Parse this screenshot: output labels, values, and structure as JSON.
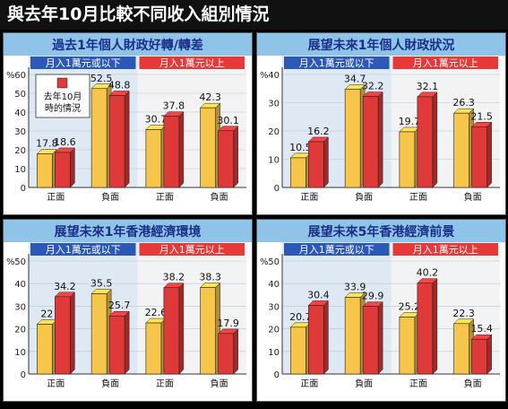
{
  "title": "與去年10月比較不同收入組別情況",
  "colors": {
    "yellow": "#f6c64a",
    "red": "#e0393a",
    "header_bg": "#8fc3e8",
    "header_text": "#1a2f8a",
    "plot_bg_left": "#dfe9f4",
    "plot_bg_right": "#f3f3f3",
    "legend_blue": "#2c59b8",
    "legend_red": "#e8393a"
  },
  "legend_note": {
    "line1": "去年10月",
    "line2": "時的情況"
  },
  "chart_data": [
    {
      "type": "bar",
      "title": "過去1年個人財政好轉/轉差",
      "ylabel": "%",
      "ylim": [
        0,
        60
      ],
      "yticks": [
        0,
        10,
        20,
        30,
        40,
        50,
        60
      ],
      "groups": [
        "月入1萬元或以下",
        "月入1萬元以上"
      ],
      "categories": [
        "正面",
        "負面",
        "正面",
        "負面"
      ],
      "series": [
        {
          "values": [
            17.8,
            52.5,
            30.7,
            42.3
          ]
        },
        {
          "values": [
            18.6,
            48.8,
            37.8,
            30.1
          ]
        }
      ],
      "has_note": true
    },
    {
      "type": "bar",
      "title": "展望未來1年個人財政狀況",
      "ylabel": "%",
      "ylim": [
        0,
        40
      ],
      "yticks": [
        0,
        10,
        20,
        30,
        40
      ],
      "groups": [
        "月入1萬元或以下",
        "月入1萬元以上"
      ],
      "categories": [
        "正面",
        "負面",
        "正面",
        "負面"
      ],
      "series": [
        {
          "values": [
            10.5,
            34.7,
            19.7,
            26.3
          ]
        },
        {
          "values": [
            16.2,
            32.2,
            32.1,
            21.5
          ]
        }
      ],
      "has_note": false
    },
    {
      "type": "bar",
      "title": "展望未來1年香港經濟環境",
      "ylabel": "%",
      "ylim": [
        0,
        50
      ],
      "yticks": [
        0,
        10,
        20,
        30,
        40,
        50
      ],
      "groups": [
        "月入1萬元或以下",
        "月入1萬元以上"
      ],
      "categories": [
        "正面",
        "負面",
        "正面",
        "負面"
      ],
      "series": [
        {
          "values": [
            22,
            35.5,
            22.6,
            38.3
          ]
        },
        {
          "values": [
            34.2,
            25.7,
            38.2,
            17.9
          ]
        }
      ],
      "has_note": false
    },
    {
      "type": "bar",
      "title": "展望未來5年香港經濟前景",
      "ylabel": "%",
      "ylim": [
        0,
        50
      ],
      "yticks": [
        0,
        10,
        20,
        30,
        40,
        50
      ],
      "groups": [
        "月入1萬元或以下",
        "月入1萬元以上"
      ],
      "categories": [
        "正面",
        "負面",
        "正面",
        "負面"
      ],
      "series": [
        {
          "values": [
            20.7,
            33.9,
            25.2,
            22.3
          ]
        },
        {
          "values": [
            30.4,
            29.9,
            40.2,
            15.4
          ]
        }
      ],
      "has_note": false
    }
  ]
}
